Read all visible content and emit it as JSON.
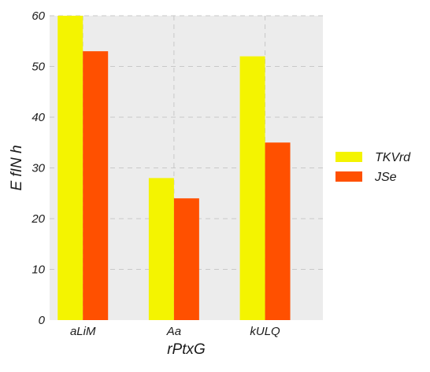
{
  "chart_data": {
    "type": "bar",
    "title": "",
    "xlabel": "rPtxG",
    "ylabel": "E fIN h",
    "categories": [
      "aLiM",
      "Aa",
      "kULQ"
    ],
    "series": [
      {
        "name": "TKVrd",
        "values": [
          60,
          28,
          52
        ],
        "color": "#f4f400"
      },
      {
        "name": "JSe",
        "values": [
          53,
          24,
          35
        ],
        "color": "#ff5000"
      }
    ],
    "ylim": [
      0,
      60
    ],
    "yticks": [
      0,
      10,
      20,
      30,
      40,
      50,
      60
    ],
    "grid": true,
    "legend_position": "right",
    "background_color": "#ececec"
  }
}
